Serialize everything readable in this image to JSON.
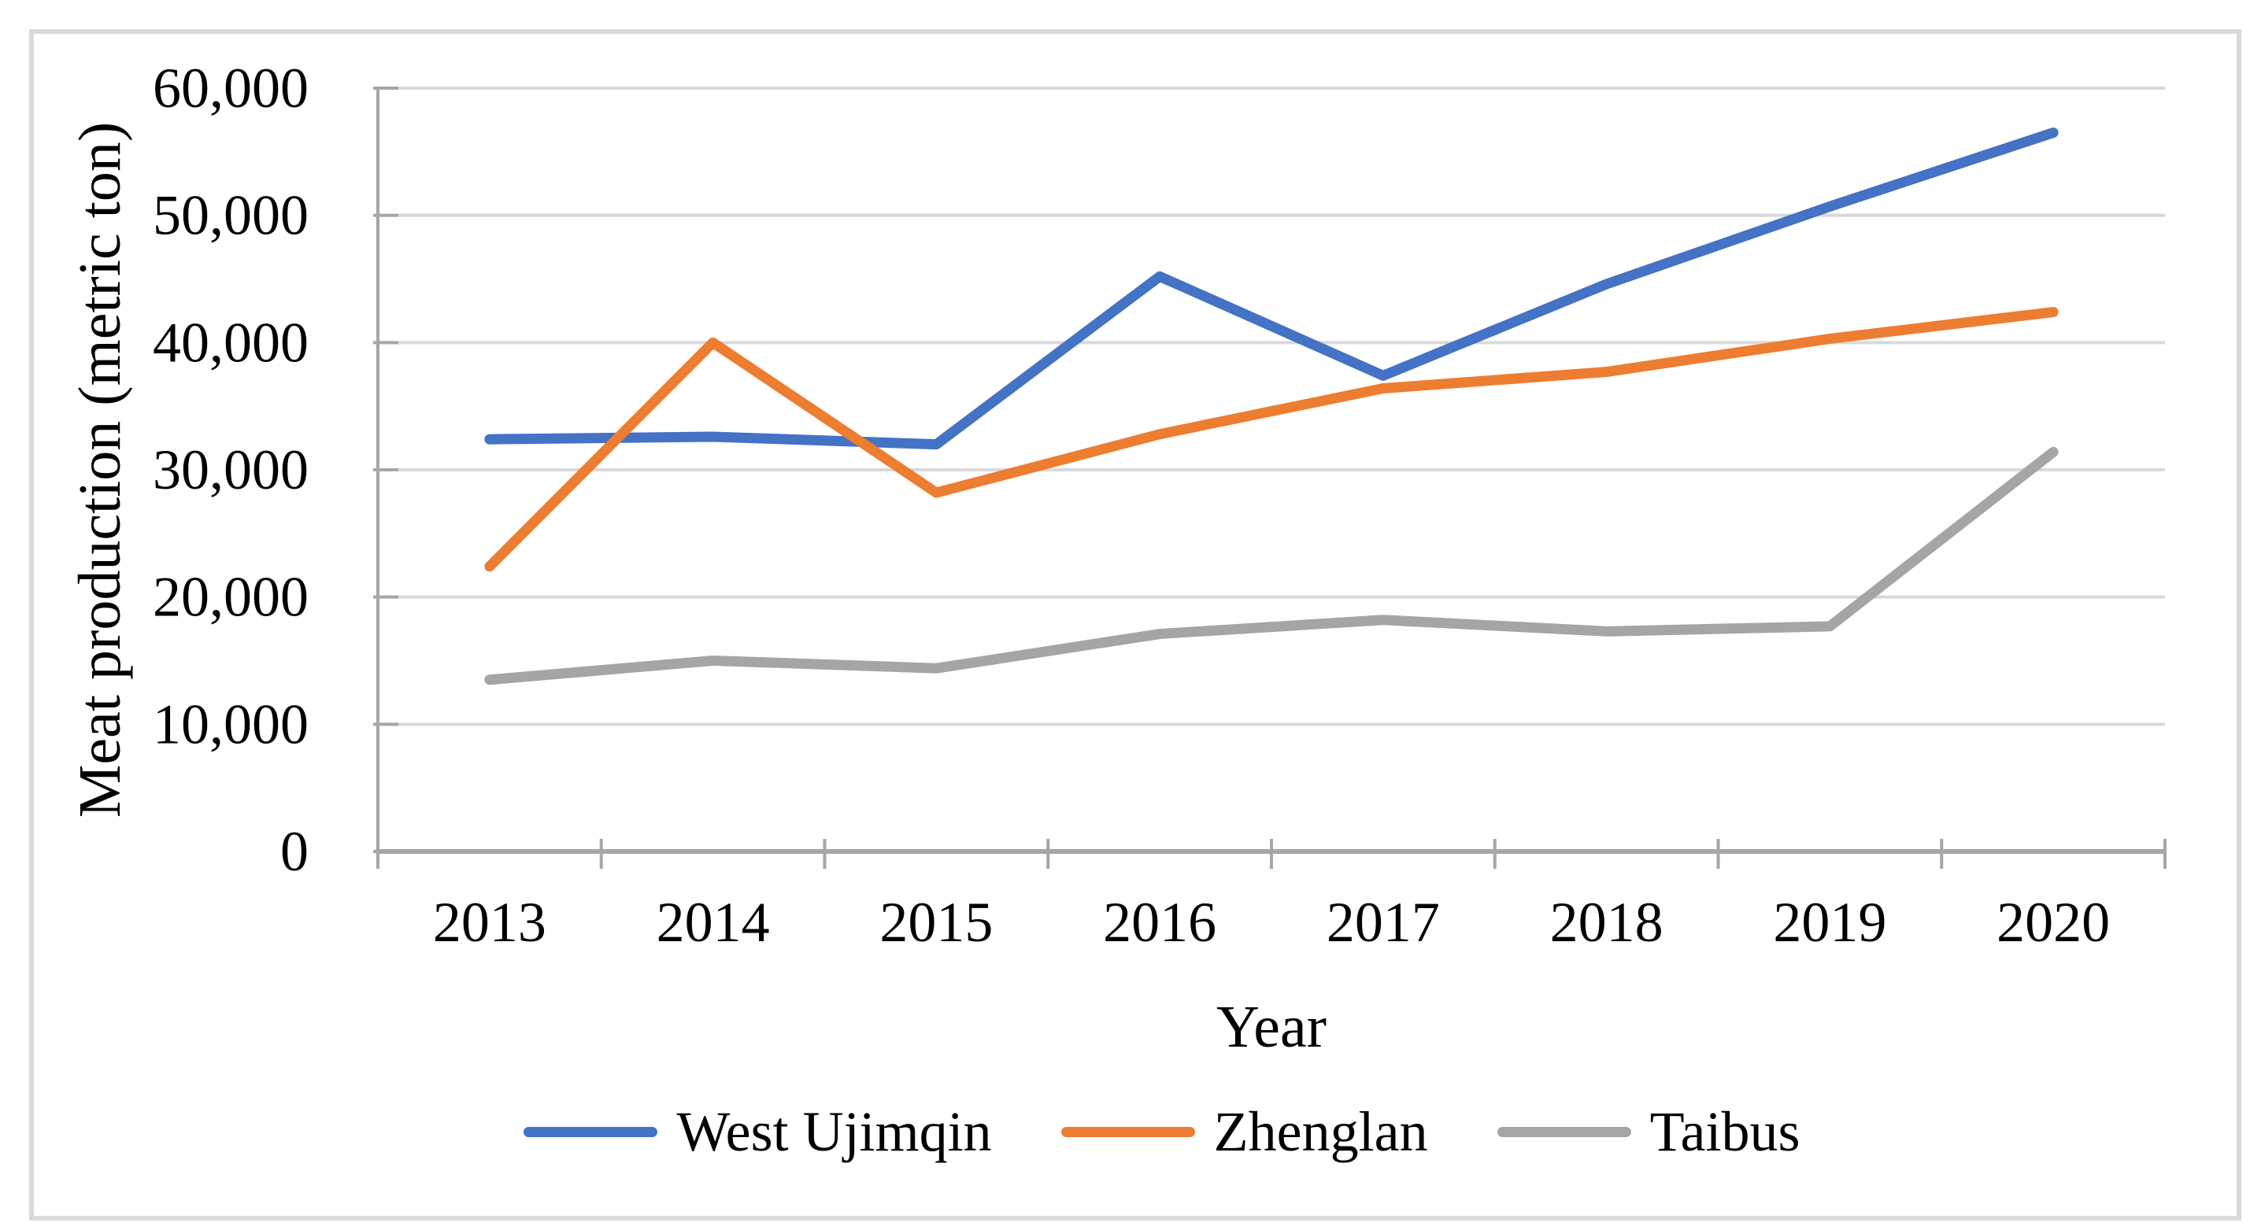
{
  "chart_data": {
    "type": "line",
    "title": "",
    "xlabel": "Year",
    "ylabel": "Meat production (metric ton)",
    "categories": [
      "2013",
      "2014",
      "2015",
      "2016",
      "2017",
      "2018",
      "2019",
      "2020"
    ],
    "series": [
      {
        "name": "West Ujimqin",
        "color": "#4472C4",
        "values": [
          32400,
          32600,
          32000,
          45200,
          37400,
          44600,
          50700,
          56500
        ]
      },
      {
        "name": "Zhenglan",
        "color": "#ED7D31",
        "values": [
          22400,
          40000,
          28200,
          32800,
          36400,
          37700,
          40300,
          42400
        ]
      },
      {
        "name": "Taibus",
        "color": "#A5A5A5",
        "values": [
          13500,
          15000,
          14400,
          17100,
          18200,
          17300,
          17700,
          31400
        ]
      }
    ],
    "ylim": [
      0,
      60000
    ],
    "yticks": [
      {
        "value": 0,
        "label": "0"
      },
      {
        "value": 10000,
        "label": "10,000"
      },
      {
        "value": 20000,
        "label": "20,000"
      },
      {
        "value": 30000,
        "label": "30,000"
      },
      {
        "value": 40000,
        "label": "40,000"
      },
      {
        "value": 50000,
        "label": "50,000"
      },
      {
        "value": 60000,
        "label": "60,000"
      }
    ],
    "grid": "horizontal",
    "legend_position": "bottom"
  },
  "colors": {
    "background": "#FFFFFF",
    "figure_border": "#D9D9D9",
    "gridline": "#D9D9D9",
    "axis": "#A6A6A6",
    "text": "#000000"
  }
}
